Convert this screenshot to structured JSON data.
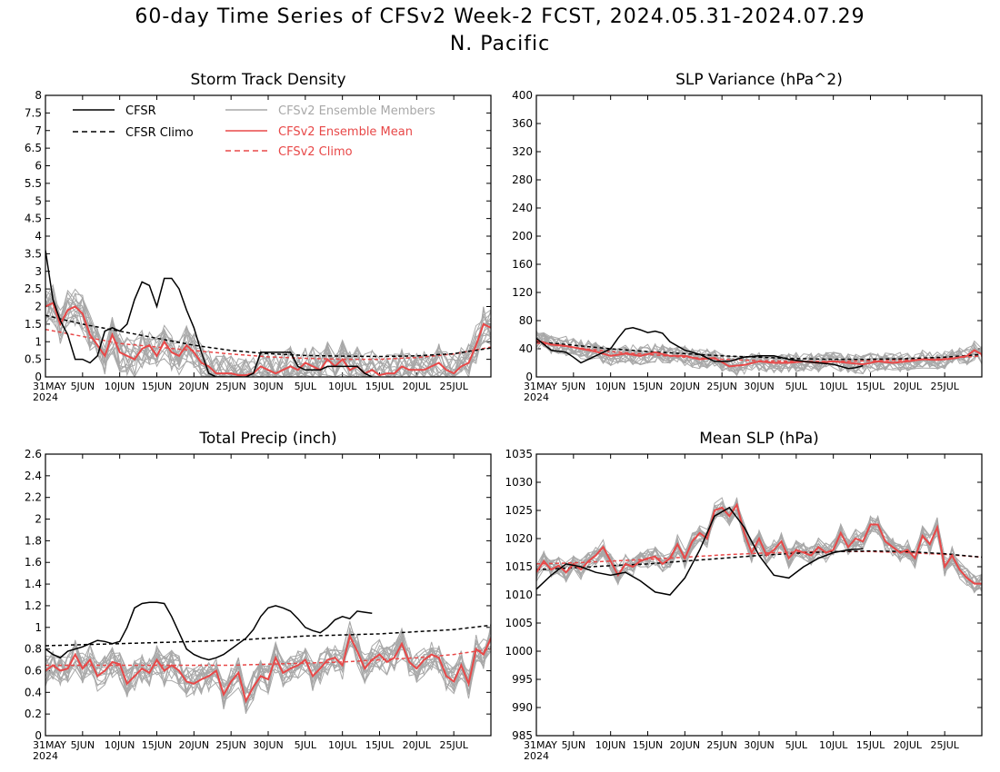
{
  "title": "60-day Time Series of CFSv2 Week-2 FCST, 2024.05.31-2024.07.29",
  "subtitle": "N. Pacific",
  "colors": {
    "cfsr": "#000000",
    "members": "#a8a8a8",
    "mean": "#e84848"
  },
  "x_labels": [
    "31MAY",
    "5JUN",
    "10JUN",
    "15JUN",
    "20JUN",
    "25JUN",
    "30JUN",
    "5JUL",
    "10JUL",
    "15JUL",
    "20JUL",
    "25JUL"
  ],
  "x_year_label": "2024",
  "chart_data": [
    {
      "type": "line",
      "title": "Storm Track Density",
      "x_unit": "days since 2024-05-31",
      "xlim": [
        0,
        60
      ],
      "ylim": [
        0,
        8
      ],
      "yticks": [
        "0",
        "0.5",
        "1",
        "1.5",
        "2",
        "2.5",
        "3",
        "3.5",
        "4",
        "4.5",
        "5",
        "5.5",
        "6",
        "6.5",
        "7",
        "7.5",
        "8"
      ],
      "legend": [
        {
          "label": "CFSR",
          "style": "solid",
          "color": "#000000"
        },
        {
          "label": "CFSR Climo",
          "style": "dashed",
          "color": "#000000"
        },
        {
          "label": "CFSv2 Ensemble Members",
          "style": "solid",
          "color": "#a8a8a8"
        },
        {
          "label": "CFSv2 Ensemble Mean",
          "style": "solid",
          "color": "#e84848"
        },
        {
          "label": "CFSv2 Climo",
          "style": "dashed",
          "color": "#e84848"
        }
      ],
      "series": [
        {
          "name": "CFSR",
          "x": [
            0,
            1,
            2,
            3,
            4,
            5,
            6,
            7,
            8,
            9,
            10,
            11,
            12,
            13,
            14,
            15,
            16,
            17,
            18,
            19,
            20,
            21,
            22,
            23,
            24,
            25,
            26,
            27,
            28,
            29,
            30,
            31,
            32,
            33,
            34,
            35,
            36,
            37,
            38,
            39,
            40,
            41,
            42,
            43,
            44
          ],
          "y": [
            3.6,
            2.2,
            1.6,
            1.2,
            0.5,
            0.5,
            0.4,
            0.6,
            1.3,
            1.4,
            1.3,
            1.5,
            2.2,
            2.7,
            2.6,
            2.0,
            2.8,
            2.8,
            2.5,
            1.9,
            1.4,
            0.7,
            0.1,
            0,
            0,
            0,
            0,
            0,
            0.1,
            0.7,
            0.7,
            0.7,
            0.7,
            0.7,
            0.3,
            0.2,
            0.2,
            0.2,
            0.3,
            0.3,
            0.3,
            0.3,
            0.3,
            0.1,
            0
          ]
        },
        {
          "name": "CFSR Climo",
          "x": [
            0,
            5,
            10,
            15,
            20,
            25,
            30,
            35,
            40,
            45,
            50,
            55,
            60
          ],
          "y": [
            1.75,
            1.5,
            1.3,
            1.1,
            0.9,
            0.75,
            0.66,
            0.61,
            0.59,
            0.58,
            0.6,
            0.66,
            0.82
          ]
        },
        {
          "name": "CFSv2 Ensemble Mean",
          "x": [
            0,
            1,
            2,
            3,
            4,
            5,
            6,
            7,
            8,
            9,
            10,
            11,
            12,
            13,
            14,
            15,
            16,
            17,
            18,
            19,
            20,
            21,
            22,
            23,
            24,
            25,
            26,
            27,
            28,
            29,
            30,
            31,
            32,
            33,
            34,
            35,
            36,
            37,
            38,
            39,
            40,
            41,
            42,
            43,
            44,
            45,
            46,
            47,
            48,
            49,
            50,
            51,
            52,
            53,
            54,
            55,
            56,
            57,
            58,
            59,
            60
          ],
          "y": [
            2.0,
            2.1,
            1.5,
            1.9,
            2.0,
            1.8,
            1.2,
            0.9,
            0.6,
            1.2,
            0.7,
            0.6,
            0.5,
            0.8,
            0.9,
            0.6,
            1.0,
            0.7,
            0.6,
            0.9,
            0.7,
            0.4,
            0.3,
            0.1,
            0.1,
            0.1,
            0.05,
            0.05,
            0.1,
            0.3,
            0.2,
            0.1,
            0.2,
            0.3,
            0.2,
            0.4,
            0.3,
            0.2,
            0.5,
            0.3,
            0.5,
            0.2,
            0.3,
            0.1,
            0.2,
            0.05,
            0.1,
            0.1,
            0.3,
            0.2,
            0.2,
            0.2,
            0.3,
            0.4,
            0.2,
            0.1,
            0.3,
            0.4,
            0.9,
            1.5,
            1.4
          ]
        },
        {
          "name": "CFSv2 Climo",
          "x": [
            0,
            5,
            10,
            15,
            20,
            25,
            30,
            35,
            40,
            45,
            50,
            55,
            60
          ],
          "y": [
            1.35,
            1.15,
            0.95,
            0.85,
            0.75,
            0.65,
            0.57,
            0.53,
            0.5,
            0.5,
            0.55,
            0.65,
            0.85
          ]
        }
      ]
    },
    {
      "type": "line",
      "title": "SLP Variance (hPa^2)",
      "x_unit": "days since 2024-05-31",
      "xlim": [
        0,
        60
      ],
      "ylim": [
        0,
        400
      ],
      "yticks": [
        "0",
        "40",
        "80",
        "120",
        "160",
        "200",
        "240",
        "280",
        "320",
        "360",
        "400"
      ],
      "series": [
        {
          "name": "CFSR",
          "x": [
            0,
            2,
            4,
            5,
            6,
            8,
            10,
            11,
            12,
            13,
            14,
            15,
            16,
            17,
            18,
            20,
            22,
            24,
            26,
            28,
            30,
            32,
            34,
            36,
            38,
            40,
            42,
            43,
            44
          ],
          "y": [
            55,
            38,
            35,
            28,
            20,
            30,
            40,
            55,
            68,
            70,
            67,
            63,
            65,
            62,
            50,
            38,
            32,
            22,
            22,
            28,
            30,
            30,
            25,
            22,
            20,
            18,
            12,
            13,
            16
          ]
        },
        {
          "name": "CFSR Climo",
          "x": [
            0,
            5,
            10,
            15,
            20,
            25,
            30,
            35,
            40,
            45,
            50,
            55,
            60
          ],
          "y": [
            50,
            45,
            40,
            36,
            33,
            30,
            28,
            26,
            25,
            25,
            26,
            28,
            32
          ]
        },
        {
          "name": "CFSv2 Ensemble Mean",
          "x": [
            0,
            2,
            4,
            6,
            8,
            10,
            12,
            14,
            16,
            18,
            20,
            22,
            24,
            26,
            28,
            30,
            32,
            34,
            36,
            38,
            40,
            42,
            44,
            46,
            48,
            50,
            52,
            54,
            56,
            58,
            59,
            60
          ],
          "y": [
            52,
            46,
            44,
            40,
            36,
            30,
            33,
            30,
            35,
            30,
            30,
            25,
            27,
            15,
            17,
            22,
            20,
            20,
            22,
            20,
            22,
            20,
            18,
            22,
            20,
            22,
            25,
            24,
            26,
            30,
            38,
            32
          ]
        },
        {
          "name": "CFSv2 Climo",
          "x": [
            0,
            5,
            10,
            15,
            20,
            25,
            30,
            35,
            40,
            45,
            50,
            55,
            60
          ],
          "y": [
            48,
            42,
            36,
            32,
            28,
            25,
            23,
            22,
            22,
            23,
            24,
            26,
            30
          ]
        }
      ]
    },
    {
      "type": "line",
      "title": "Total Precip (inch)",
      "x_unit": "days since 2024-05-31",
      "xlim": [
        0,
        60
      ],
      "ylim": [
        0,
        2.6
      ],
      "yticks": [
        "0",
        "0.2",
        "0.4",
        "0.6",
        "0.8",
        "1",
        "1.2",
        "1.4",
        "1.6",
        "1.8",
        "2",
        "2.2",
        "2.4",
        "2.6"
      ],
      "series": [
        {
          "name": "CFSR",
          "x": [
            0,
            1,
            2,
            3,
            4,
            5,
            6,
            7,
            8,
            9,
            10,
            11,
            12,
            13,
            14,
            15,
            16,
            17,
            18,
            19,
            20,
            21,
            22,
            23,
            24,
            25,
            26,
            27,
            28,
            29,
            30,
            31,
            32,
            33,
            34,
            35,
            36,
            37,
            38,
            39,
            40,
            41,
            42,
            43,
            44
          ],
          "y": [
            0.8,
            0.75,
            0.72,
            0.78,
            0.8,
            0.82,
            0.85,
            0.88,
            0.87,
            0.85,
            0.87,
            1.0,
            1.18,
            1.22,
            1.23,
            1.23,
            1.22,
            1.1,
            0.95,
            0.8,
            0.75,
            0.72,
            0.7,
            0.72,
            0.75,
            0.8,
            0.85,
            0.9,
            0.98,
            1.1,
            1.18,
            1.2,
            1.18,
            1.15,
            1.08,
            1.0,
            0.97,
            0.95,
            1.0,
            1.07,
            1.1,
            1.08,
            1.15,
            1.14,
            1.13
          ]
        },
        {
          "name": "CFSR Climo",
          "x": [
            0,
            5,
            10,
            15,
            20,
            25,
            30,
            35,
            40,
            45,
            50,
            55,
            60
          ],
          "y": [
            0.83,
            0.84,
            0.85,
            0.86,
            0.87,
            0.88,
            0.9,
            0.92,
            0.93,
            0.94,
            0.96,
            0.98,
            1.02
          ]
        },
        {
          "name": "CFSv2 Ensemble Mean",
          "x": [
            0,
            1,
            2,
            3,
            4,
            5,
            6,
            7,
            8,
            9,
            10,
            11,
            12,
            13,
            14,
            15,
            16,
            17,
            18,
            19,
            20,
            21,
            22,
            23,
            24,
            25,
            26,
            27,
            28,
            29,
            30,
            31,
            32,
            33,
            34,
            35,
            36,
            37,
            38,
            39,
            40,
            41,
            42,
            43,
            44,
            45,
            46,
            47,
            48,
            49,
            50,
            51,
            52,
            53,
            54,
            55,
            56,
            57,
            58,
            59,
            60
          ],
          "y": [
            0.6,
            0.65,
            0.6,
            0.62,
            0.75,
            0.62,
            0.7,
            0.55,
            0.6,
            0.68,
            0.66,
            0.48,
            0.55,
            0.62,
            0.58,
            0.7,
            0.6,
            0.65,
            0.6,
            0.5,
            0.48,
            0.52,
            0.55,
            0.6,
            0.38,
            0.5,
            0.58,
            0.32,
            0.45,
            0.55,
            0.52,
            0.72,
            0.58,
            0.62,
            0.65,
            0.7,
            0.55,
            0.62,
            0.7,
            0.72,
            0.65,
            0.92,
            0.78,
            0.62,
            0.7,
            0.75,
            0.68,
            0.72,
            0.85,
            0.68,
            0.62,
            0.7,
            0.75,
            0.72,
            0.55,
            0.5,
            0.65,
            0.48,
            0.8,
            0.75,
            0.9
          ]
        },
        {
          "name": "CFSv2 Climo",
          "x": [
            0,
            5,
            10,
            15,
            20,
            25,
            30,
            35,
            40,
            45,
            50,
            55,
            60
          ],
          "y": [
            0.65,
            0.65,
            0.65,
            0.65,
            0.65,
            0.65,
            0.66,
            0.67,
            0.68,
            0.7,
            0.72,
            0.75,
            0.8
          ]
        }
      ]
    },
    {
      "type": "line",
      "title": "Mean SLP (hPa)",
      "x_unit": "days since 2024-05-31",
      "xlim": [
        0,
        60
      ],
      "ylim": [
        985,
        1035
      ],
      "yticks": [
        "985",
        "990",
        "995",
        "1000",
        "1005",
        "1010",
        "1015",
        "1020",
        "1025",
        "1030",
        "1035"
      ],
      "series": [
        {
          "name": "CFSR",
          "x": [
            0,
            2,
            4,
            6,
            8,
            10,
            12,
            14,
            16,
            18,
            20,
            22,
            24,
            26,
            28,
            30,
            32,
            34,
            36,
            38,
            40,
            42,
            44
          ],
          "y": [
            1011,
            1013.5,
            1015.5,
            1015,
            1014,
            1013.5,
            1014,
            1012.5,
            1010.5,
            1010,
            1013,
            1018,
            1024,
            1025.5,
            1022,
            1017,
            1013.5,
            1013,
            1015,
            1016.5,
            1017.5,
            1018,
            1018.2
          ]
        },
        {
          "name": "CFSR Climo",
          "x": [
            0,
            5,
            10,
            15,
            20,
            25,
            30,
            35,
            40,
            45,
            50,
            55,
            60
          ],
          "y": [
            1014.5,
            1014.8,
            1015.2,
            1015.5,
            1016,
            1016.5,
            1017,
            1017.4,
            1017.7,
            1017.8,
            1017.7,
            1017.3,
            1016.7
          ]
        },
        {
          "name": "CFSv2 Ensemble Mean",
          "x": [
            0,
            1,
            2,
            3,
            4,
            5,
            6,
            7,
            8,
            9,
            10,
            11,
            12,
            13,
            14,
            15,
            16,
            17,
            18,
            19,
            20,
            21,
            22,
            23,
            24,
            25,
            26,
            27,
            28,
            29,
            30,
            31,
            32,
            33,
            34,
            35,
            36,
            37,
            38,
            39,
            40,
            41,
            42,
            43,
            44,
            45,
            46,
            47,
            48,
            49,
            50,
            51,
            52,
            53,
            54,
            55,
            56,
            57,
            58,
            59,
            60
          ],
          "y": [
            1014,
            1016,
            1014.5,
            1015.2,
            1014,
            1015.5,
            1014.5,
            1016,
            1017,
            1018.5,
            1016,
            1013.5,
            1015.5,
            1015,
            1016,
            1016.5,
            1016.8,
            1015.5,
            1016.5,
            1019,
            1016.5,
            1019.5,
            1021,
            1020,
            1025,
            1025.5,
            1024,
            1026,
            1021,
            1017.5,
            1020,
            1017,
            1018,
            1019.5,
            1016.5,
            1018,
            1017.5,
            1017,
            1018.5,
            1017.5,
            1018,
            1021,
            1018.5,
            1020,
            1019.5,
            1022.5,
            1022.5,
            1019.5,
            1018.5,
            1017.5,
            1018,
            1016.5,
            1020.5,
            1019,
            1022,
            1015,
            1017,
            1014.5,
            1013,
            1012,
            1012
          ]
        },
        {
          "name": "CFSv2 Climo",
          "x": [
            0,
            5,
            10,
            15,
            20,
            25,
            30,
            35,
            40,
            45,
            50,
            55,
            60
          ],
          "y": [
            1015.5,
            1015.7,
            1016,
            1016.3,
            1016.7,
            1017.1,
            1017.4,
            1017.6,
            1017.7,
            1017.7,
            1017.5,
            1017.2,
            1016.7
          ]
        }
      ]
    }
  ]
}
